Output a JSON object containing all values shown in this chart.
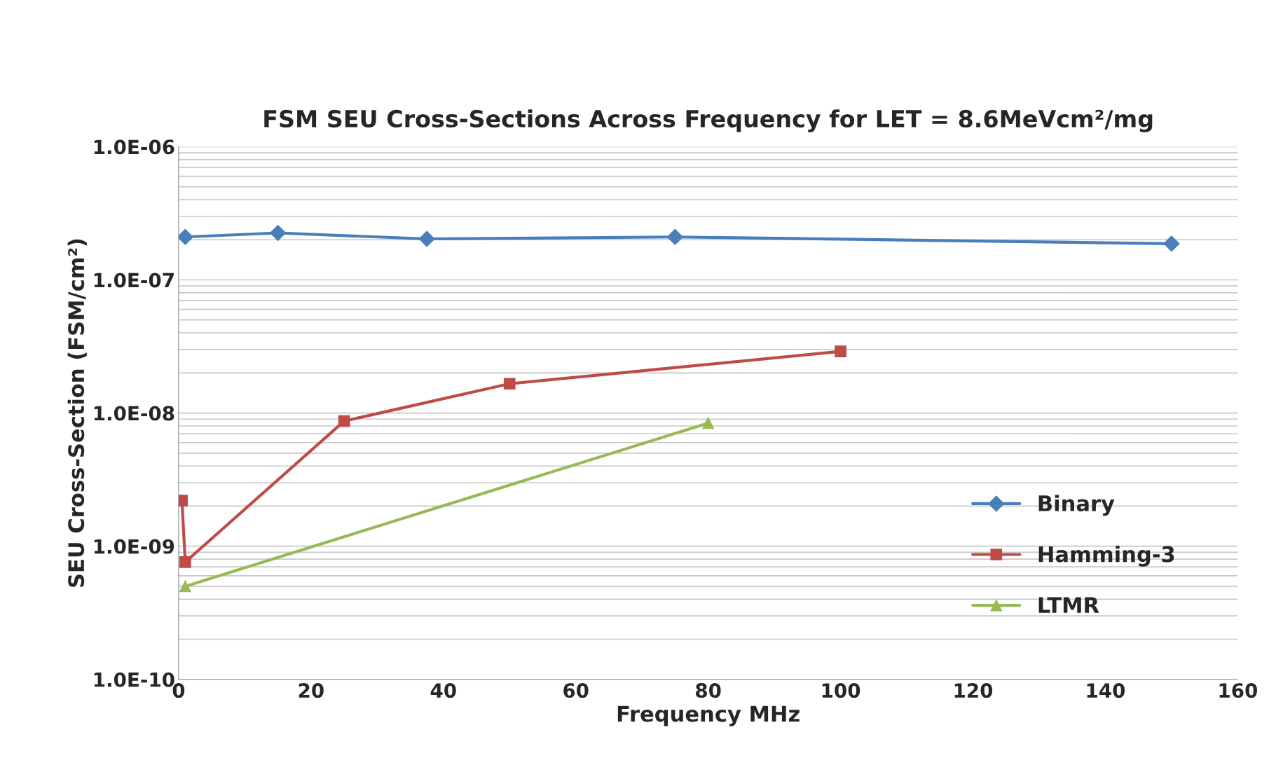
{
  "chart_data": {
    "type": "line",
    "title": "FSM SEU Cross-Sections Across Frequency for LET = 8.6MeVcm²/mg",
    "xlabel": "Frequency MHz",
    "ylabel": "SEU Cross-Section (FSM/cm²)",
    "log": "y",
    "grid": "y",
    "legend": "lower right",
    "xlim": [
      0,
      160
    ],
    "xticks": [
      0,
      20,
      40,
      60,
      80,
      100,
      120,
      140,
      160
    ],
    "ylim": [
      1e-10,
      1e-06
    ],
    "yticks": [
      {
        "value": 1e-10,
        "label": "1.0E-10"
      },
      {
        "value": 1e-09,
        "label": "1.0E-09"
      },
      {
        "value": 1e-08,
        "label": "1.0E-08"
      },
      {
        "value": 1e-07,
        "label": "1.0E-07"
      },
      {
        "value": 1e-06,
        "label": "1.0E-06"
      }
    ],
    "series": [
      {
        "name": "Binary",
        "color": "#4a7ebb",
        "marker": "diamond",
        "x": [
          1,
          15,
          37.5,
          75,
          150
        ],
        "values": [
          2.1e-07,
          2.25e-07,
          2.03e-07,
          2.1e-07,
          1.87e-07
        ]
      },
      {
        "name": "Hamming-3",
        "color": "#be4b48",
        "marker": "square",
        "x": [
          0.5,
          1,
          25,
          50,
          100
        ],
        "values": [
          2.2e-09,
          7.6e-10,
          8.7e-09,
          1.66e-08,
          2.9e-08
        ]
      },
      {
        "name": "LTMR",
        "color": "#98b954",
        "marker": "triangle",
        "x": [
          1,
          80
        ],
        "values": [
          5e-10,
          8.4e-09
        ]
      }
    ]
  }
}
